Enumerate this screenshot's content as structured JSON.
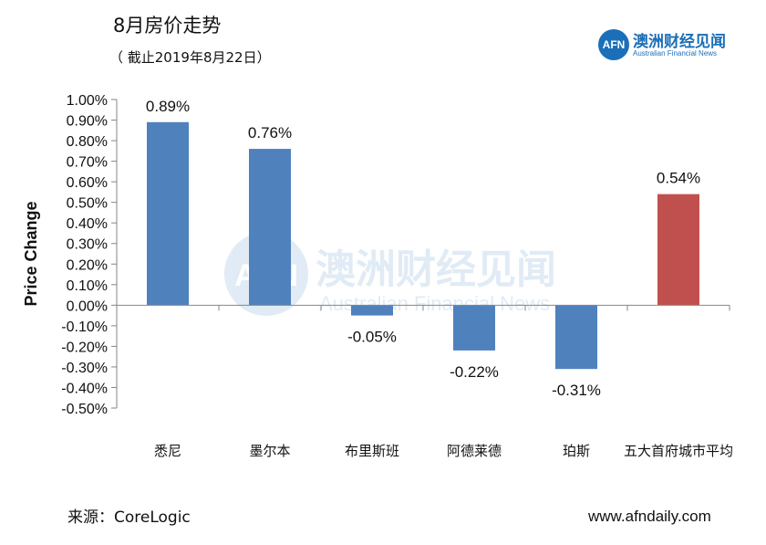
{
  "header": {
    "title": "8月房价走势",
    "subtitle": "（ 截止2019年8月22日）"
  },
  "brand": {
    "logo_text": "AFN",
    "name_cn": "澳洲财经见闻",
    "name_en": "Australian Financial News"
  },
  "footer": {
    "source": "来源：CoreLogic",
    "site": "www.afndaily.com"
  },
  "chart_data": {
    "type": "bar",
    "ylabel": "Price Change",
    "xlabel": "",
    "ylim": [
      -0.5,
      1.0
    ],
    "yticks": [
      1.0,
      0.9,
      0.8,
      0.7,
      0.6,
      0.5,
      0.4,
      0.3,
      0.2,
      0.1,
      0.0,
      -0.1,
      -0.2,
      -0.3,
      -0.4,
      -0.5
    ],
    "ytick_labels": [
      "1.00%",
      "0.90%",
      "0.80%",
      "0.70%",
      "0.60%",
      "0.50%",
      "0.40%",
      "0.30%",
      "0.20%",
      "0.10%",
      "0.00%",
      "-0.10%",
      "-0.20%",
      "-0.30%",
      "-0.40%",
      "-0.50%"
    ],
    "categories": [
      "悉尼",
      "墨尔本",
      "布里斯班",
      "阿德莱德",
      "珀斯",
      "五大首府城市平均"
    ],
    "values": [
      0.89,
      0.76,
      -0.05,
      -0.22,
      -0.31,
      0.54
    ],
    "value_labels": [
      "0.89%",
      "0.76%",
      "-0.05%",
      "-0.22%",
      "-0.31%",
      "0.54%"
    ],
    "colors": [
      "#4f81bd",
      "#4f81bd",
      "#4f81bd",
      "#4f81bd",
      "#4f81bd",
      "#c0504d"
    ],
    "grid": false,
    "legend": "none",
    "watermark": {
      "logo_text": "AFN",
      "name_cn": "澳洲财经见闻",
      "name_en": "Australian Financial News"
    }
  }
}
